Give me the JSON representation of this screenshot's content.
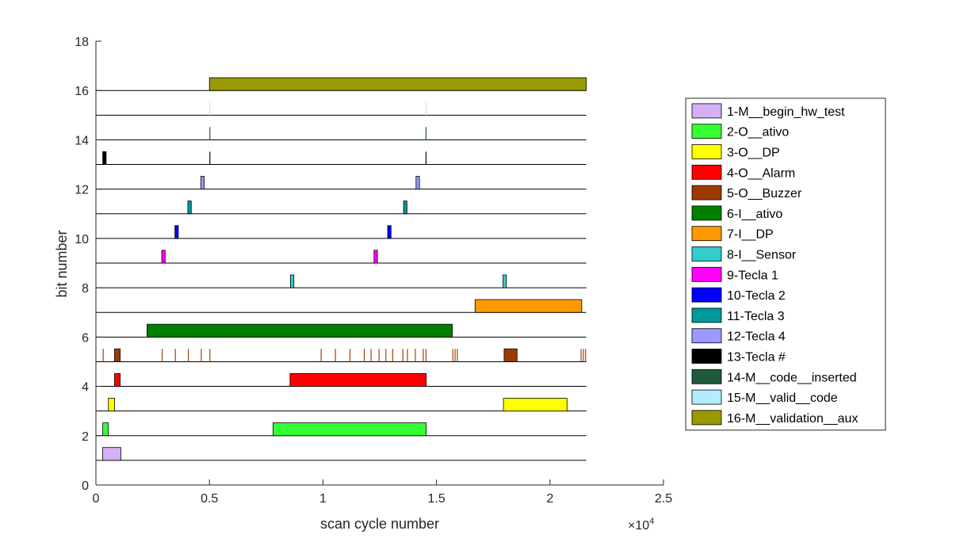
{
  "chart_data": {
    "type": "bar",
    "xlabel": "scan cycle number",
    "ylabel": "bit number",
    "x_exponent_base": "×10",
    "x_exponent_power": "4",
    "xlim": [
      0,
      25000
    ],
    "ylim": [
      0,
      18
    ],
    "x_ticks": [
      0,
      5000,
      10000,
      15000,
      20000,
      25000
    ],
    "x_tick_labels": [
      "0",
      "0.5",
      "1",
      "1.5",
      "2",
      "2.5"
    ],
    "y_ticks": [
      0,
      2,
      4,
      6,
      8,
      10,
      12,
      14,
      16,
      18
    ],
    "y_tick_labels": [
      "0",
      "2",
      "4",
      "6",
      "8",
      "10",
      "12",
      "14",
      "16",
      "18"
    ],
    "baseline_x_end": 21600,
    "grid": false,
    "legend_position": "right",
    "series": [
      {
        "name": "1-M__begin_hw_test",
        "bit": 1,
        "color": "#d4b0f5",
        "intervals": [
          [
            300,
            1100
          ]
        ]
      },
      {
        "name": "2-O__ativo",
        "bit": 2,
        "color": "#33ff33",
        "intervals": [
          [
            300,
            550
          ],
          [
            7800,
            14550
          ]
        ]
      },
      {
        "name": "3-O__DP",
        "bit": 3,
        "color": "#ffff00",
        "intervals": [
          [
            550,
            820
          ],
          [
            17950,
            20750
          ]
        ]
      },
      {
        "name": "4-O__Alarm",
        "bit": 4,
        "color": "#ff0000",
        "intervals": [
          [
            820,
            1070
          ],
          [
            8550,
            14550
          ]
        ]
      },
      {
        "name": "5-O__Buzzer",
        "bit": 5,
        "color": "#9e3a00",
        "intervals": [
          [
            300,
            340
          ],
          [
            820,
            1070
          ],
          [
            2900,
            2940
          ],
          [
            3480,
            3520
          ],
          [
            4050,
            4090
          ],
          [
            4620,
            4660
          ],
          [
            5000,
            5040
          ],
          [
            9900,
            9940
          ],
          [
            10530,
            10570
          ],
          [
            11170,
            11210
          ],
          [
            11800,
            11840
          ],
          [
            12100,
            12140
          ],
          [
            12450,
            12490
          ],
          [
            12750,
            12790
          ],
          [
            13050,
            13090
          ],
          [
            13500,
            13540
          ],
          [
            13700,
            13740
          ],
          [
            14050,
            14090
          ],
          [
            14400,
            14440
          ],
          [
            14520,
            14560
          ],
          [
            15700,
            15740
          ],
          [
            15800,
            15840
          ],
          [
            15900,
            15940
          ],
          [
            17980,
            18550
          ],
          [
            21350,
            21390
          ],
          [
            21450,
            21490
          ],
          [
            21550,
            21590
          ]
        ]
      },
      {
        "name": "6-I__ativo",
        "bit": 6,
        "color": "#007f00",
        "intervals": [
          [
            2250,
            15700
          ]
        ]
      },
      {
        "name": "7-I__DP",
        "bit": 7,
        "color": "#ff9900",
        "intervals": [
          [
            16700,
            21400
          ]
        ]
      },
      {
        "name": "8-I__Sensor",
        "bit": 8,
        "color": "#33cccc",
        "intervals": [
          [
            8570,
            8720
          ],
          [
            17930,
            18080
          ]
        ]
      },
      {
        "name": "9-Tecla 1",
        "bit": 9,
        "color": "#ff00ff",
        "intervals": [
          [
            2900,
            3050
          ],
          [
            12250,
            12400
          ]
        ]
      },
      {
        "name": "10-Tecla 2",
        "bit": 10,
        "color": "#0000ff",
        "intervals": [
          [
            3480,
            3630
          ],
          [
            12850,
            13000
          ]
        ]
      },
      {
        "name": "11-Tecla 3",
        "bit": 11,
        "color": "#009999",
        "intervals": [
          [
            4050,
            4200
          ],
          [
            13550,
            13700
          ]
        ]
      },
      {
        "name": "12-Tecla 4",
        "bit": 12,
        "color": "#9999ff",
        "intervals": [
          [
            4620,
            4770
          ],
          [
            14100,
            14250
          ]
        ]
      },
      {
        "name": "13-Tecla #",
        "bit": 13,
        "color": "#000000",
        "intervals": [
          [
            300,
            450
          ],
          [
            5000,
            5040
          ],
          [
            14520,
            14560
          ]
        ]
      },
      {
        "name": "14-M__code__inserted",
        "bit": 14,
        "color": "#1f5a3c",
        "intervals": [
          [
            5000,
            5040
          ],
          [
            14520,
            14560
          ]
        ]
      },
      {
        "name": "15-M__valid__code",
        "bit": 15,
        "color": "#b3ecff",
        "intervals": [
          [
            5000,
            5040
          ],
          [
            14520,
            14560
          ]
        ]
      },
      {
        "name": "16-M__validation__aux",
        "bit": 16,
        "color": "#999900",
        "intervals": [
          [
            5000,
            21600
          ]
        ]
      }
    ]
  }
}
